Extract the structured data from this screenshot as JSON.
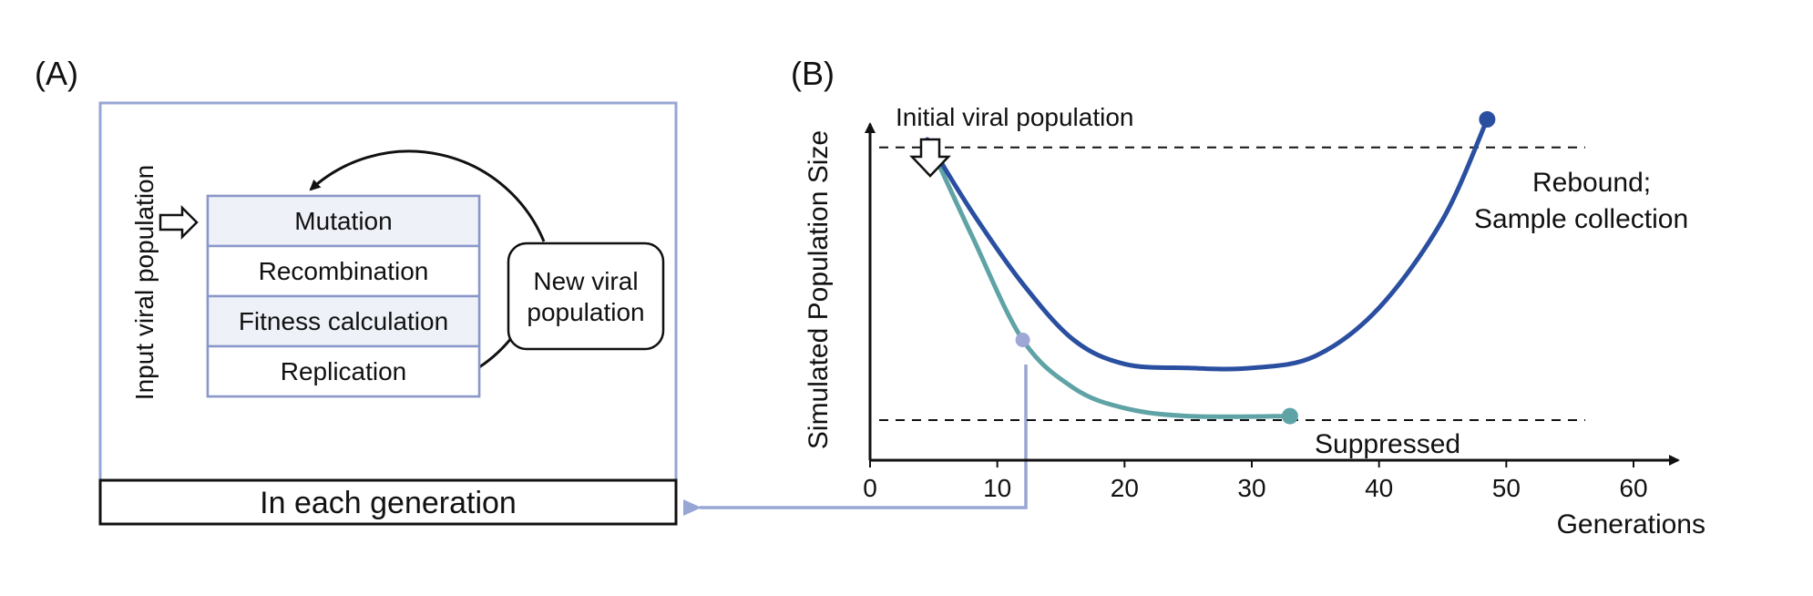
{
  "panelA": {
    "label": "(A)",
    "input_label": "Input viral population",
    "steps": [
      "Mutation",
      "Recombination",
      "Fitness calculation",
      "Replication"
    ],
    "new_population": [
      "New viral",
      "population"
    ],
    "generation_label": "In each generation"
  },
  "panelB": {
    "label": "(B)",
    "initial_label": "Initial viral population",
    "rebound_label": [
      "Rebound;",
      "Sample collection"
    ],
    "suppressed_label": "Suppressed"
  },
  "chart_data": {
    "type": "line",
    "xlabel": "Generations",
    "ylabel": "Simulated Population Size",
    "xlim": [
      0,
      63
    ],
    "ylim": [
      0,
      1
    ],
    "x_ticks": [
      0,
      10,
      20,
      30,
      40,
      50,
      60
    ],
    "thresholds": [
      0.78,
      0.1
    ],
    "series": [
      {
        "color": "#2a4fa0",
        "points": [
          [
            4.5,
            0.8
          ],
          [
            8,
            0.62
          ],
          [
            12,
            0.44
          ],
          [
            16,
            0.3
          ],
          [
            20,
            0.24
          ],
          [
            25,
            0.23
          ],
          [
            30,
            0.23
          ],
          [
            35,
            0.26
          ],
          [
            40,
            0.38
          ],
          [
            45,
            0.6
          ],
          [
            48.5,
            0.85
          ]
        ],
        "end_marker": true
      },
      {
        "color": "#5fa3a6",
        "points": [
          [
            4.5,
            0.8
          ],
          [
            8,
            0.56
          ],
          [
            12,
            0.3
          ],
          [
            16,
            0.18
          ],
          [
            20,
            0.13
          ],
          [
            25,
            0.11
          ],
          [
            33,
            0.11
          ]
        ],
        "end_marker": true
      }
    ],
    "highlight_point": {
      "x": 12,
      "y": 0.3,
      "color": "#9ea8d6"
    }
  },
  "colors": {
    "frame": "#97a6d4",
    "box_border": "#8a98c8",
    "box_fill_alt": "#eef1f8",
    "rebound": "#2a4fa0",
    "suppressed": "#5fa3a6",
    "link": "#97a6d4"
  }
}
